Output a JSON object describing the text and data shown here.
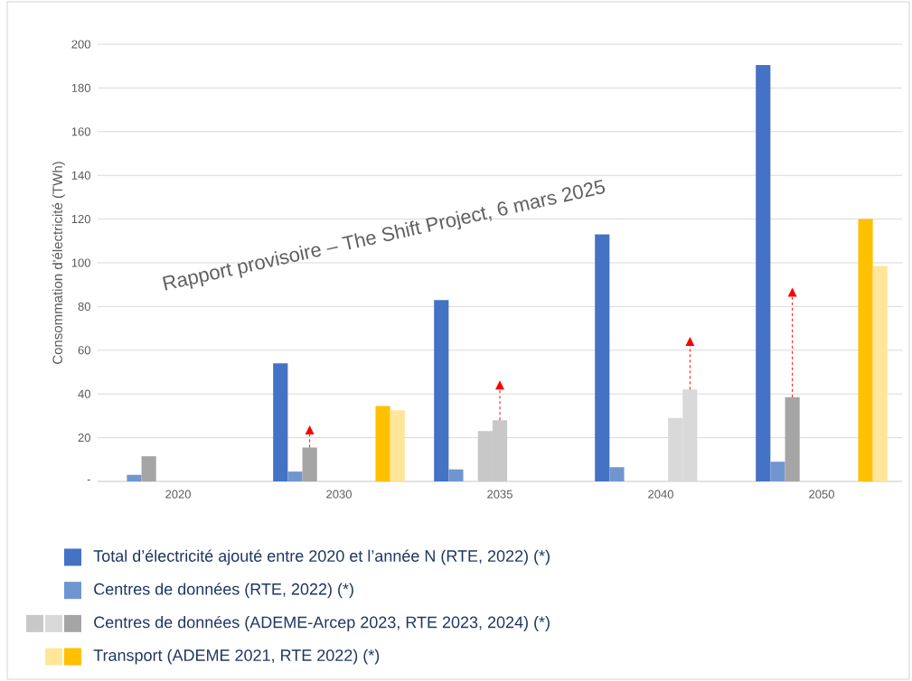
{
  "chart_data": {
    "type": "bar",
    "ylabel": "Consommation d'électricité (TWh)",
    "categories": [
      "2020",
      "2030",
      "2035",
      "2040",
      "2050"
    ],
    "ylim": [
      0,
      200
    ],
    "yticks": [
      {
        "value": 0,
        "label": "-"
      },
      20,
      40,
      60,
      80,
      100,
      120,
      140,
      160,
      180,
      200
    ],
    "grid": "y",
    "legend": "bottom",
    "annotations": [
      "Rapport provisoire – The Shift Project, 6 mars 2025"
    ],
    "series": [
      {
        "name": "Total d’électricité ajouté entre 2020 et l’année N (RTE, 2022) (*)",
        "color": "#4472c4",
        "values": [
          null,
          54,
          83,
          113,
          190.5
        ]
      },
      {
        "name": "Centres de données (RTE, 2022) (*)",
        "color": "#7096d2",
        "values": [
          3,
          4.5,
          5.5,
          6.5,
          9
        ]
      },
      {
        "name": "Centres de données (ADEME-Arcep 2023, RTE 2023, 2024) (*)",
        "color": "#a5a5a5",
        "values": [
          11.5,
          15.5,
          null,
          null,
          38.5
        ],
        "errors": [
          null,
          [
            15.5,
            21.5
          ],
          null,
          null,
          [
            38.5,
            84.5
          ]
        ]
      },
      {
        "color": "#c8c8c8",
        "values": [
          null,
          null,
          23,
          null,
          null
        ]
      },
      {
        "color": "#c8c8c8",
        "values": [
          null,
          null,
          28,
          null,
          null
        ],
        "errors": [
          null,
          null,
          [
            28,
            42
          ],
          null,
          null
        ]
      },
      {
        "color": "#d9d9d9",
        "values": [
          null,
          null,
          null,
          29,
          null
        ]
      },
      {
        "color": "#d9d9d9",
        "values": [
          null,
          null,
          null,
          42,
          null
        ],
        "errors": [
          null,
          null,
          null,
          [
            42,
            62
          ],
          null
        ]
      },
      {
        "name": "Transport (ADEME 2021, RTE 2022) (*)",
        "color": "#ffc000",
        "values": [
          null,
          34.5,
          null,
          null,
          120
        ]
      },
      {
        "color": "#ffe699",
        "values": [
          null,
          32.5,
          null,
          null,
          98.5
        ]
      }
    ]
  }
}
